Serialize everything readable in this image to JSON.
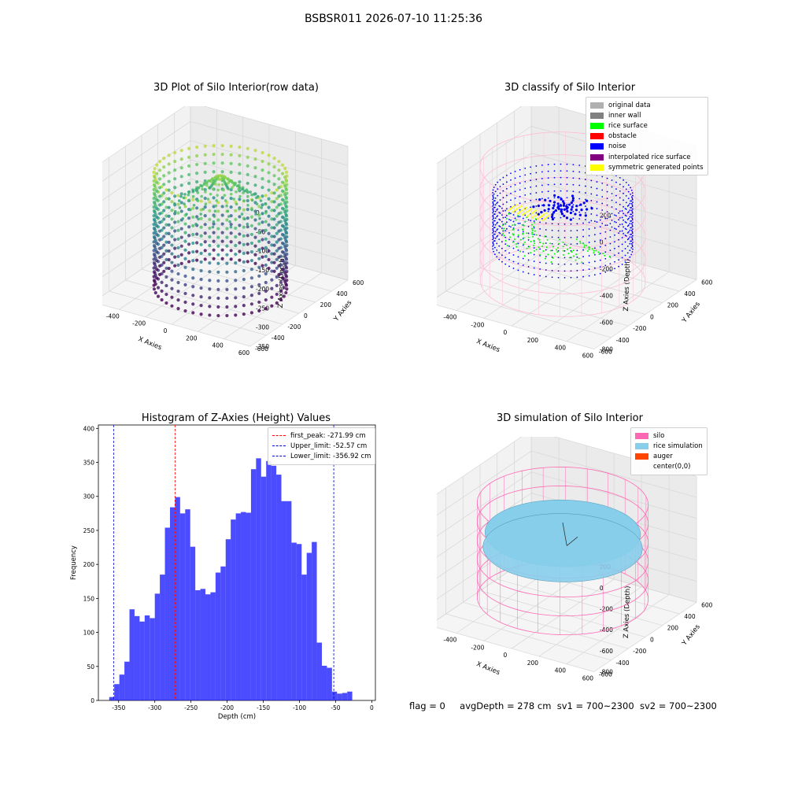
{
  "suptitle": "BSBSR011 2026-07-10 11:25:36",
  "panels": {
    "raw": {
      "title": "3D Plot of Silo Interior(row data)",
      "xlabel": "X Axies",
      "ylabel": "Y Axies",
      "zlabel": "Z Axies (Depth)",
      "xticks": [
        "-600",
        "-400",
        "-200",
        "0",
        "200",
        "400",
        "600"
      ],
      "yticks": [
        "600",
        "400",
        "200",
        "0",
        "-200",
        "-400",
        "-600"
      ],
      "zticks": [
        "0",
        "-50",
        "-100",
        "-150",
        "-200",
        "-250",
        "-300",
        "-350"
      ]
    },
    "classify": {
      "title": "3D classify of Silo Interior",
      "xlabel": "X Axies",
      "ylabel": "Y Axies",
      "zlabel": "Z Axies (Depth)",
      "xticks": [
        "-600",
        "-400",
        "-200",
        "0",
        "200",
        "400",
        "600"
      ],
      "yticks": [
        "600",
        "400",
        "200",
        "0",
        "-200",
        "-400",
        "-600"
      ],
      "zticks": [
        "200",
        "0",
        "-200",
        "-400",
        "-600",
        "-800"
      ],
      "legend": [
        {
          "label": "original data",
          "color": "#b0b0b0"
        },
        {
          "label": "inner wall",
          "color": "#808080"
        },
        {
          "label": "rice surface",
          "color": "#00ff00"
        },
        {
          "label": "obstacle",
          "color": "#ff0000"
        },
        {
          "label": "noise",
          "color": "#0000ff"
        },
        {
          "label": "interpolated rice surface",
          "color": "#800080"
        },
        {
          "label": "symmetric generated points",
          "color": "#ffff00"
        }
      ]
    },
    "simulation": {
      "title": "3D simulation of Silo Interior",
      "xlabel": "X Axies",
      "ylabel": "Y Axies",
      "zlabel": "Z Axies (Depth)",
      "xticks": [
        "-600",
        "-400",
        "-200",
        "0",
        "200",
        "400",
        "600"
      ],
      "yticks": [
        "600",
        "400",
        "200",
        "0",
        "-200",
        "-400",
        "-600"
      ],
      "zticks": [
        "400",
        "200",
        "0",
        "-200",
        "-400",
        "-600",
        "-800"
      ],
      "legend": [
        {
          "label": "silo",
          "color": "#ff69b4"
        },
        {
          "label": "rice simulation",
          "color": "#87ceeb"
        },
        {
          "label": "auger",
          "color": "#ff4500"
        },
        {
          "label": "center(0,0)",
          "color": ""
        }
      ]
    }
  },
  "chart_data": {
    "type": "bar",
    "title": "Histogram of Z-Axies (Height) Values",
    "xlabel": "Depth (cm)",
    "ylabel": "Frequency",
    "xlim": [
      -378,
      5
    ],
    "ylim": [
      0,
      405
    ],
    "xticks": [
      -350,
      -300,
      -250,
      -200,
      -150,
      -100,
      -50,
      0
    ],
    "yticks": [
      0,
      50,
      100,
      150,
      200,
      250,
      300,
      350,
      400
    ],
    "bin_start": -363,
    "bin_width": 7,
    "values": [
      5,
      24,
      38,
      57,
      134,
      124,
      116,
      125,
      121,
      157,
      185,
      254,
      284,
      299,
      275,
      281,
      226,
      162,
      164,
      156,
      159,
      188,
      197,
      237,
      266,
      275,
      277,
      276,
      340,
      356,
      329,
      352,
      345,
      332,
      293,
      293,
      232,
      230,
      185,
      217,
      233,
      85,
      51,
      48,
      13,
      10,
      11,
      13
    ],
    "bar_color": "#0000ff",
    "legend": [
      {
        "label": "first_peak: -271.99 cm",
        "value": -271.99,
        "color": "#ff0000"
      },
      {
        "label": "Upper_limit: -52.57 cm",
        "value": -52.57,
        "color": "#0000cc"
      },
      {
        "label": "Lower_limit: -356.92 cm",
        "value": -356.92,
        "color": "#0000cc"
      }
    ]
  },
  "footer": {
    "flag": "flag = 0",
    "avg": "avgDepth = 278 cm",
    "sv1": "sv1 = 700~2300",
    "sv2": "sv2 = 700~2300"
  }
}
